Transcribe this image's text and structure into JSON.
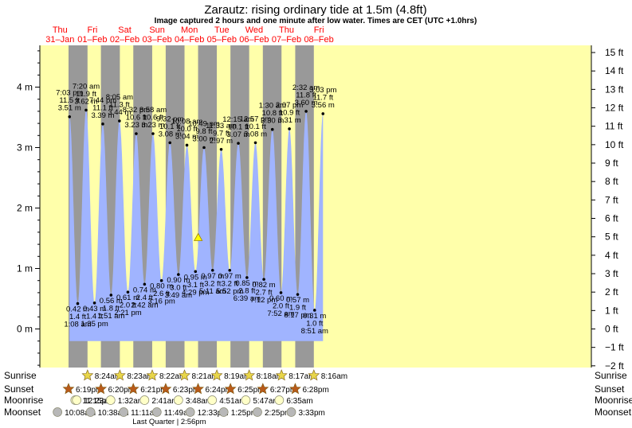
{
  "title": "Zarautz: rising  ordinary tide at 1.5m (4.8ft)",
  "subtitle": "Image captured 2 hours and one minute after low water. Times are CET (UTC +1.0hrs)",
  "colors": {
    "night": "#999999",
    "day": "#ffffaa",
    "tide_fill": "#a0b4ff",
    "date_label": "#ff0000",
    "star_sunrise": "#e8d64a",
    "star_sunset": "#b85a1a",
    "moonrise": "#ffffc8",
    "moonset": "#b8b8b8"
  },
  "days": [
    {
      "dow": "Thu",
      "date": "31–Jan"
    },
    {
      "dow": "Fri",
      "date": "01–Feb"
    },
    {
      "dow": "Sat",
      "date": "02–Feb"
    },
    {
      "dow": "Sun",
      "date": "03–Feb"
    },
    {
      "dow": "Mon",
      "date": "04–Feb"
    },
    {
      "dow": "Tue",
      "date": "05–Feb"
    },
    {
      "dow": "Wed",
      "date": "06–Feb"
    },
    {
      "dow": "Thu",
      "date": "07–Feb"
    },
    {
      "dow": "Fri",
      "date": "08–Feb"
    }
  ],
  "chart_data": {
    "type": "area",
    "title": "Zarautz: rising  ordinary tide at 1.5m (4.8ft)",
    "y_left_unit": "m",
    "y_left_ticks": [
      0,
      1,
      2,
      3,
      4
    ],
    "y_left_range": [
      -0.6,
      4.7
    ],
    "y_right_unit": "ft",
    "y_right_ticks": [
      -2,
      -1,
      0,
      1,
      2,
      3,
      4,
      5,
      6,
      7,
      8,
      9,
      10,
      11,
      12,
      13,
      14,
      15
    ],
    "x_range_hours": [
      -24,
      180
    ],
    "current_level_m": 1.5,
    "current_time": "Mon 04–Feb 18:30",
    "extremes": [
      {
        "day": 0,
        "hour": 19.05,
        "m": 3.51,
        "time": "7:03 pm",
        "ft": "11.5 ft",
        "ml": "3.51 m",
        "type": "high"
      },
      {
        "day": 1,
        "hour": 1.13,
        "m": 0.42,
        "time": "1:08 am",
        "ft": "1.4 ft",
        "ml": "0.42 m",
        "type": "low"
      },
      {
        "day": 1,
        "hour": 7.33,
        "m": 3.62,
        "time": "7:20 am",
        "ft": "11.9 ft",
        "ml": "3.62 m",
        "type": "high"
      },
      {
        "day": 1,
        "hour": 13.58,
        "m": 0.43,
        "time": "1:35 pm",
        "ft": "1.4 ft",
        "ml": "0.43 m",
        "type": "low"
      },
      {
        "day": 1,
        "hour": 19.73,
        "m": 3.39,
        "time": "7:44 pm",
        "ft": "11.1 ft",
        "ml": "3.39 m",
        "type": "high"
      },
      {
        "day": 2,
        "hour": 1.85,
        "m": 0.56,
        "time": "1:51 am",
        "ft": "1.8 ft",
        "ml": "0.56 m",
        "type": "low"
      },
      {
        "day": 2,
        "hour": 8.08,
        "m": 3.44,
        "time": "8:05 am",
        "ft": "11.3 ft",
        "ml": "3.44 m",
        "type": "high"
      },
      {
        "day": 2,
        "hour": 14.35,
        "m": 0.61,
        "time": "2:21 pm",
        "ft": "2.0 ft",
        "ml": "0.61 m",
        "type": "low"
      },
      {
        "day": 2,
        "hour": 20.53,
        "m": 3.23,
        "time": "8:32 pm",
        "ft": "10.6 ft",
        "ml": "3.23 m",
        "type": "high"
      },
      {
        "day": 3,
        "hour": 2.7,
        "m": 0.74,
        "time": "2:42 am",
        "ft": "2.4 ft",
        "ml": "0.74 m",
        "type": "low"
      },
      {
        "day": 3,
        "hour": 8.97,
        "m": 3.23,
        "time": "8:58 am",
        "ft": "10.6 ft",
        "ml": "3.23 m",
        "type": "high"
      },
      {
        "day": 3,
        "hour": 15.27,
        "m": 0.8,
        "time": "3:16 pm",
        "ft": "2.6 ft",
        "ml": "0.80 m",
        "type": "low"
      },
      {
        "day": 3,
        "hour": 21.53,
        "m": 3.08,
        "time": "9:32 pm",
        "ft": "10.1 ft",
        "ml": "3.08 m",
        "type": "high"
      },
      {
        "day": 4,
        "hour": 3.82,
        "m": 0.9,
        "time": "3:49 am",
        "ft": "3.0 ft",
        "ml": "0.90 m",
        "type": "low"
      },
      {
        "day": 4,
        "hour": 10.13,
        "m": 3.04,
        "time": "10:08 am",
        "ft": "10.0 ft",
        "ml": "3.04 m",
        "type": "high"
      },
      {
        "day": 4,
        "hour": 16.48,
        "m": 0.95,
        "time": "4:29 pm",
        "ft": "3.1 ft",
        "ml": "0.95 m",
        "type": "low"
      },
      {
        "day": 4,
        "hour": 22.82,
        "m": 3.0,
        "time": "10:49 pm",
        "ft": "9.8 ft",
        "ml": "3.00 m",
        "type": "high"
      },
      {
        "day": 5,
        "hour": 5.18,
        "m": 0.97,
        "time": "5:11 am",
        "ft": "3.2 ft",
        "ml": "0.97 m",
        "type": "low"
      },
      {
        "day": 5,
        "hour": 11.55,
        "m": 2.97,
        "time": "11:33 am",
        "ft": "9.7 ft",
        "ml": "2.97 m",
        "type": "high"
      },
      {
        "day": 5,
        "hour": 17.87,
        "m": 0.97,
        "time": "5:52 pm",
        "ft": "3.2 ft",
        "ml": "0.97 m",
        "type": "low"
      },
      {
        "day": 6,
        "hour": 0.25,
        "m": 3.07,
        "time": "12:15 am",
        "ft": "10.1 ft",
        "ml": "3.07 m",
        "type": "high"
      },
      {
        "day": 6,
        "hour": 6.65,
        "m": 0.85,
        "time": "6:39 am",
        "ft": "2.8 ft",
        "ml": "0.85 m",
        "type": "low"
      },
      {
        "day": 6,
        "hour": 12.95,
        "m": 3.08,
        "time": "12:57 pm",
        "ft": "10.1 ft",
        "ml": "3.08 m",
        "type": "high"
      },
      {
        "day": 6,
        "hour": 19.2,
        "m": 0.82,
        "time": "7:12 pm",
        "ft": "2.7 ft",
        "ml": "0.82 m",
        "type": "low"
      },
      {
        "day": 7,
        "hour": 1.5,
        "m": 3.3,
        "time": "1:30 am",
        "ft": "10.8 ft",
        "ml": "3.30 m",
        "type": "high"
      },
      {
        "day": 7,
        "hour": 7.87,
        "m": 0.6,
        "time": "7:52 am",
        "ft": "2.0 ft",
        "ml": "0.60 m",
        "type": "low"
      },
      {
        "day": 7,
        "hour": 14.12,
        "m": 3.31,
        "time": "2:07 pm",
        "ft": "10.9 ft",
        "ml": "3.31 m",
        "type": "high"
      },
      {
        "day": 7,
        "hour": 20.28,
        "m": 0.57,
        "time": "8:17 pm",
        "ft": "1.9 ft",
        "ml": "0.57 m",
        "type": "low"
      },
      {
        "day": 8,
        "hour": 2.53,
        "m": 3.6,
        "time": "2:32 am",
        "ft": "11.8 ft",
        "ml": "3.60 m",
        "type": "high"
      },
      {
        "day": 8,
        "hour": 8.85,
        "m": 0.31,
        "time": "8:51 am",
        "ft": "1.0 ft",
        "ml": "0.31 m",
        "type": "low"
      },
      {
        "day": 8,
        "hour": 15.05,
        "m": 3.56,
        "time": "3:03 pm",
        "ft": "11.7 ft",
        "ml": "3.56 m",
        "type": "high"
      }
    ]
  },
  "astro": {
    "row_labels": [
      "Sunrise",
      "Sunset",
      "Moonrise",
      "Moonset"
    ],
    "sunrise": [
      {
        "day": 1,
        "time": "8:24am"
      },
      {
        "day": 2,
        "time": "8:23am"
      },
      {
        "day": 3,
        "time": "8:22am"
      },
      {
        "day": 4,
        "time": "8:21am"
      },
      {
        "day": 5,
        "time": "8:19am"
      },
      {
        "day": 6,
        "time": "8:18am"
      },
      {
        "day": 7,
        "time": "8:17am"
      },
      {
        "day": 8,
        "time": "8:16am"
      }
    ],
    "sunset": [
      {
        "day": 0,
        "time": "6:19pm"
      },
      {
        "day": 1,
        "time": "6:20pm"
      },
      {
        "day": 2,
        "time": "6:21pm"
      },
      {
        "day": 3,
        "time": "6:23pm"
      },
      {
        "day": 4,
        "time": "6:24pm"
      },
      {
        "day": 5,
        "time": "6:25pm"
      },
      {
        "day": 6,
        "time": "6:27pm"
      },
      {
        "day": 7,
        "time": "6:28pm"
      }
    ],
    "moonrise": [
      {
        "day": 0,
        "time": "11:15pm"
      },
      {
        "day": 1,
        "time": "12:23am"
      },
      {
        "day": 2,
        "time": "1:32am"
      },
      {
        "day": 3,
        "time": "2:41am"
      },
      {
        "day": 4,
        "time": "3:48am"
      },
      {
        "day": 5,
        "time": "4:51am"
      },
      {
        "day": 6,
        "time": "5:47am"
      },
      {
        "day": 7,
        "time": "6:35am"
      }
    ],
    "moonset": [
      {
        "day": 0,
        "time": "10:08am"
      },
      {
        "day": 1,
        "time": "10:38am"
      },
      {
        "day": 2,
        "time": "11:11am"
      },
      {
        "day": 3,
        "time": "11:49am"
      },
      {
        "day": 4,
        "time": "12:33pm"
      },
      {
        "day": 5,
        "time": "1:25pm"
      },
      {
        "day": 6,
        "time": "2:25pm"
      },
      {
        "day": 7,
        "time": "3:33pm"
      }
    ],
    "moon_phase": "Last Quarter | 2:56pm"
  }
}
